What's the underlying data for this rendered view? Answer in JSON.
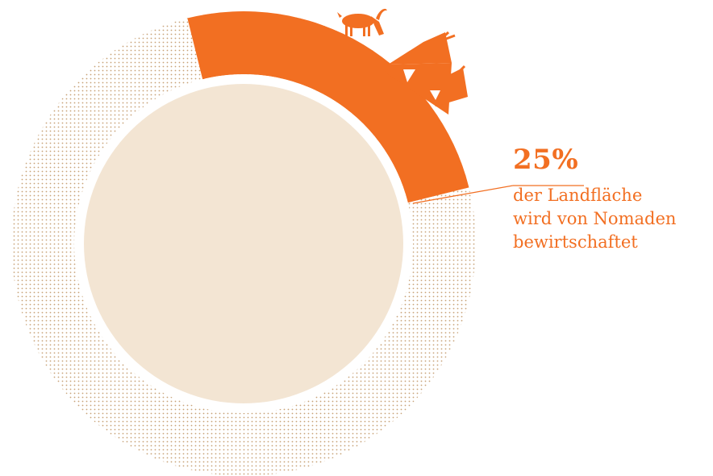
{
  "chart_data": {
    "type": "pie",
    "title": "",
    "slices": [
      {
        "label": "der Landfläche wird von Nomaden bewirtschaftet",
        "value": 25,
        "highlighted": true
      },
      {
        "label": "",
        "value": 75,
        "highlighted": false
      }
    ],
    "annotation": {
      "value_text": "25%",
      "desc_lines": [
        "der Landfläche",
        "wird von Nomaden",
        "bewirtschaftet"
      ]
    },
    "colors": {
      "highlight": "#f26f22",
      "dots": "#c7a277",
      "inner_disc": "#f3e5d3",
      "background": "#ffffff"
    },
    "icons": [
      "goat-icon",
      "tent-icon",
      "tent-icon"
    ]
  }
}
